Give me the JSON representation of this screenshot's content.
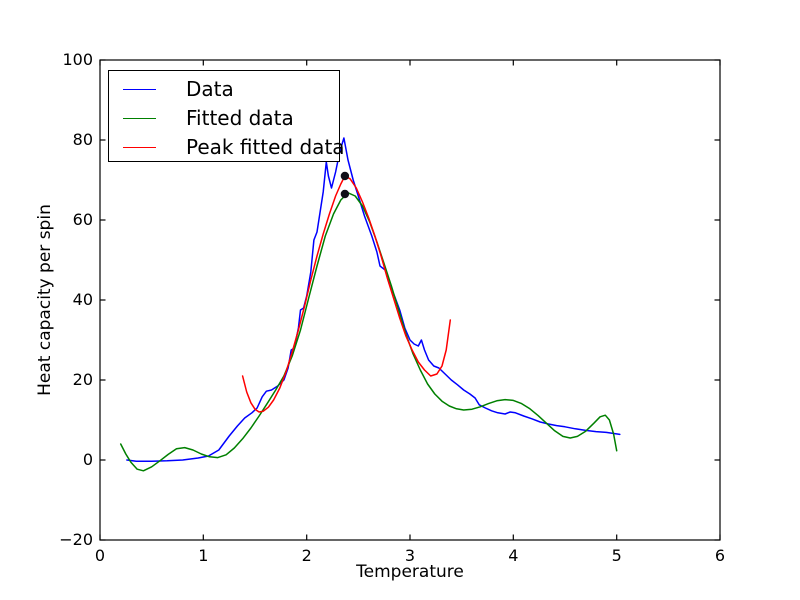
{
  "figure": {
    "background": "#ffffff",
    "xlabel": "Temperature",
    "ylabel": "Heat capacity per spin"
  },
  "legend": {
    "position": "upper left",
    "border_color": "#000000",
    "background": "#ffffff",
    "items": [
      {
        "label": "Data",
        "color": "#0000ff"
      },
      {
        "label": "Fitted data",
        "color": "#008000"
      },
      {
        "label": "Peak fitted data",
        "color": "#ff0000"
      }
    ]
  },
  "chart_data": {
    "type": "line",
    "title": "",
    "xlabel": "Temperature",
    "ylabel": "Heat capacity per spin",
    "xlim": [
      0,
      6
    ],
    "ylim": [
      -20,
      100
    ],
    "x_ticks": [
      0,
      1,
      2,
      3,
      4,
      5,
      6
    ],
    "x_tick_labels": [
      "0",
      "1",
      "2",
      "3",
      "4",
      "5",
      "6"
    ],
    "y_ticks": [
      -20,
      0,
      20,
      40,
      60,
      80,
      100
    ],
    "y_tick_labels": [
      "−20",
      "0",
      "20",
      "40",
      "60",
      "80",
      "100"
    ],
    "grid": false,
    "legend_position": "upper left",
    "series": [
      {
        "name": "Data",
        "color": "#0000ff",
        "points": [
          [
            0.26,
            0
          ],
          [
            0.35,
            -0.3
          ],
          [
            0.5,
            -0.3
          ],
          [
            0.65,
            -0.2
          ],
          [
            0.8,
            0
          ],
          [
            0.95,
            0.5
          ],
          [
            1.05,
            1
          ],
          [
            1.15,
            2.5
          ],
          [
            1.25,
            6
          ],
          [
            1.33,
            8.5
          ],
          [
            1.4,
            10.5
          ],
          [
            1.47,
            11.8
          ],
          [
            1.52,
            13
          ],
          [
            1.57,
            15.8
          ],
          [
            1.61,
            17.2
          ],
          [
            1.66,
            17.5
          ],
          [
            1.72,
            18.5
          ],
          [
            1.78,
            20
          ],
          [
            1.82,
            23
          ],
          [
            1.85,
            27.5
          ],
          [
            1.88,
            28
          ],
          [
            1.92,
            33
          ],
          [
            1.94,
            37.5
          ],
          [
            1.97,
            38
          ],
          [
            2.0,
            41
          ],
          [
            2.04,
            47
          ],
          [
            2.07,
            55
          ],
          [
            2.1,
            57
          ],
          [
            2.13,
            62
          ],
          [
            2.16,
            67
          ],
          [
            2.19,
            74.5
          ],
          [
            2.21,
            71
          ],
          [
            2.24,
            68
          ],
          [
            2.28,
            72
          ],
          [
            2.32,
            77
          ],
          [
            2.36,
            80.5
          ],
          [
            2.4,
            75
          ],
          [
            2.45,
            70
          ],
          [
            2.5,
            66
          ],
          [
            2.56,
            61
          ],
          [
            2.63,
            56
          ],
          [
            2.68,
            52
          ],
          [
            2.71,
            48.5
          ],
          [
            2.76,
            47.5
          ],
          [
            2.8,
            44
          ],
          [
            2.85,
            41
          ],
          [
            2.9,
            37.5
          ],
          [
            2.95,
            33
          ],
          [
            3.0,
            30
          ],
          [
            3.04,
            29
          ],
          [
            3.08,
            28.5
          ],
          [
            3.11,
            30
          ],
          [
            3.14,
            27.5
          ],
          [
            3.18,
            25
          ],
          [
            3.23,
            23.5
          ],
          [
            3.28,
            23
          ],
          [
            3.34,
            21.5
          ],
          [
            3.4,
            20
          ],
          [
            3.46,
            18.8
          ],
          [
            3.52,
            17.5
          ],
          [
            3.58,
            16.5
          ],
          [
            3.63,
            15.5
          ],
          [
            3.67,
            13.8
          ],
          [
            3.73,
            13
          ],
          [
            3.79,
            12.3
          ],
          [
            3.85,
            11.8
          ],
          [
            3.92,
            11.5
          ],
          [
            3.97,
            12
          ],
          [
            4.02,
            11.8
          ],
          [
            4.1,
            11
          ],
          [
            4.18,
            10.3
          ],
          [
            4.26,
            9.5
          ],
          [
            4.34,
            9
          ],
          [
            4.42,
            8.6
          ],
          [
            4.5,
            8.3
          ],
          [
            4.6,
            7.8
          ],
          [
            4.7,
            7.4
          ],
          [
            4.8,
            7.1
          ],
          [
            4.9,
            6.9
          ],
          [
            5.03,
            6.4
          ]
        ]
      },
      {
        "name": "Fitted data",
        "color": "#008000",
        "points": [
          [
            0.2,
            4
          ],
          [
            0.25,
            1.5
          ],
          [
            0.3,
            -0.6
          ],
          [
            0.36,
            -2.3
          ],
          [
            0.42,
            -2.7
          ],
          [
            0.5,
            -1.7
          ],
          [
            0.58,
            -0.2
          ],
          [
            0.66,
            1.4
          ],
          [
            0.74,
            2.8
          ],
          [
            0.82,
            3.1
          ],
          [
            0.9,
            2.5
          ],
          [
            0.98,
            1.5
          ],
          [
            1.06,
            0.8
          ],
          [
            1.14,
            0.6
          ],
          [
            1.22,
            1.3
          ],
          [
            1.3,
            3
          ],
          [
            1.38,
            5.3
          ],
          [
            1.46,
            8
          ],
          [
            1.54,
            11
          ],
          [
            1.62,
            14.2
          ],
          [
            1.7,
            17.5
          ],
          [
            1.78,
            21
          ],
          [
            1.86,
            26
          ],
          [
            1.94,
            32.5
          ],
          [
            2.02,
            40.5
          ],
          [
            2.1,
            48.5
          ],
          [
            2.18,
            56
          ],
          [
            2.26,
            61.5
          ],
          [
            2.33,
            65
          ],
          [
            2.4,
            66.8
          ],
          [
            2.47,
            66
          ],
          [
            2.54,
            63.5
          ],
          [
            2.61,
            59.5
          ],
          [
            2.68,
            54.5
          ],
          [
            2.75,
            49
          ],
          [
            2.82,
            43.5
          ],
          [
            2.89,
            37.5
          ],
          [
            2.96,
            31.5
          ],
          [
            3.03,
            26.5
          ],
          [
            3.1,
            22.5
          ],
          [
            3.17,
            19
          ],
          [
            3.24,
            16.5
          ],
          [
            3.31,
            14.7
          ],
          [
            3.38,
            13.5
          ],
          [
            3.45,
            12.8
          ],
          [
            3.52,
            12.5
          ],
          [
            3.6,
            12.7
          ],
          [
            3.68,
            13.3
          ],
          [
            3.76,
            14.1
          ],
          [
            3.84,
            14.8
          ],
          [
            3.92,
            15.1
          ],
          [
            4.0,
            14.9
          ],
          [
            4.08,
            14.1
          ],
          [
            4.16,
            12.8
          ],
          [
            4.24,
            11.1
          ],
          [
            4.32,
            9.2
          ],
          [
            4.4,
            7.3
          ],
          [
            4.48,
            5.9
          ],
          [
            4.55,
            5.5
          ],
          [
            4.62,
            5.9
          ],
          [
            4.7,
            7.2
          ],
          [
            4.78,
            9.2
          ],
          [
            4.84,
            10.8
          ],
          [
            4.89,
            11.2
          ],
          [
            4.93,
            10
          ],
          [
            4.97,
            6.5
          ],
          [
            5.0,
            2.3
          ]
        ]
      },
      {
        "name": "Peak fitted data",
        "color": "#ff0000",
        "points": [
          [
            1.38,
            21
          ],
          [
            1.42,
            17
          ],
          [
            1.46,
            14.3
          ],
          [
            1.5,
            12.7
          ],
          [
            1.54,
            12
          ],
          [
            1.58,
            12.2
          ],
          [
            1.63,
            13.2
          ],
          [
            1.68,
            15
          ],
          [
            1.74,
            18
          ],
          [
            1.8,
            22
          ],
          [
            1.86,
            27
          ],
          [
            1.92,
            32.5
          ],
          [
            1.98,
            38.5
          ],
          [
            2.04,
            45
          ],
          [
            2.1,
            51
          ],
          [
            2.16,
            56.5
          ],
          [
            2.22,
            61.5
          ],
          [
            2.28,
            66
          ],
          [
            2.33,
            69
          ],
          [
            2.37,
            71
          ],
          [
            2.42,
            70.3
          ],
          [
            2.48,
            68
          ],
          [
            2.54,
            64.5
          ],
          [
            2.6,
            60.5
          ],
          [
            2.66,
            56
          ],
          [
            2.72,
            51
          ],
          [
            2.78,
            45.5
          ],
          [
            2.84,
            40.5
          ],
          [
            2.9,
            35.5
          ],
          [
            2.96,
            31
          ],
          [
            3.02,
            27.5
          ],
          [
            3.08,
            24.5
          ],
          [
            3.14,
            22.5
          ],
          [
            3.2,
            21
          ],
          [
            3.26,
            21.5
          ],
          [
            3.31,
            23.5
          ],
          [
            3.35,
            27.5
          ],
          [
            3.39,
            35
          ]
        ]
      }
    ],
    "markers": [
      {
        "x": 2.37,
        "y": 71.0,
        "color": "#101018"
      },
      {
        "x": 2.37,
        "y": 66.5,
        "color": "#101018"
      }
    ]
  }
}
